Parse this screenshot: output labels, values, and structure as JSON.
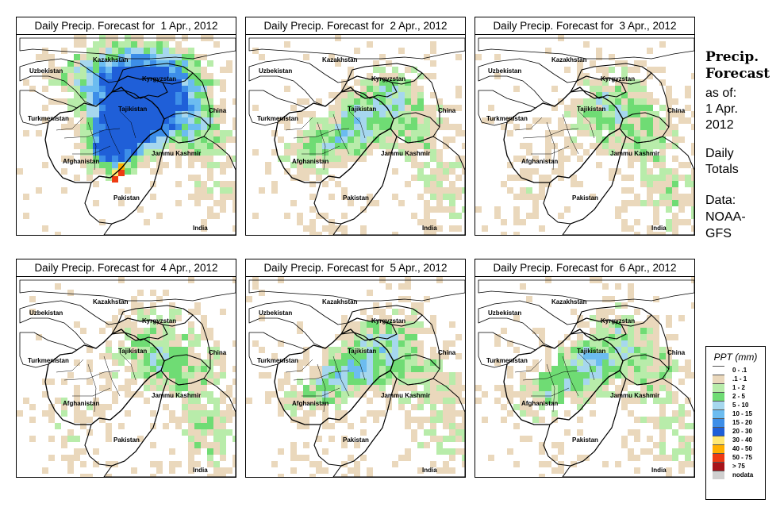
{
  "panels": [
    {
      "title": "Daily Precip. Forecast for  1 Apr., 2012",
      "intensity": "heavy"
    },
    {
      "title": "Daily Precip. Forecast for  2 Apr., 2012",
      "intensity": "moderate"
    },
    {
      "title": "Daily Precip. Forecast for  3 Apr., 2012",
      "intensity": "light"
    },
    {
      "title": "Daily Precip. Forecast for  4 Apr., 2012",
      "intensity": "light"
    },
    {
      "title": "Daily Precip. Forecast for  5 Apr., 2012",
      "intensity": "moderate"
    },
    {
      "title": "Daily Precip. Forecast for  6 Apr., 2012",
      "intensity": "moderate"
    }
  ],
  "map_labels": {
    "kazakhstan": "Kazakhstan",
    "uzbekistan": "Uzbekistan",
    "kyrgyzstan": "Kyrgyzstan",
    "tajikistan": "Tajikistan",
    "china": "China",
    "turkmenistan": "Turkmenistan",
    "afghanistan": "Afghanistan",
    "jammu_kashmir": "Jammu Kashmir",
    "pakistan": "Pakistan",
    "india": "India"
  },
  "side_text": {
    "title_line1": "Precip.",
    "title_line2": "Forecast",
    "asof": "as of:",
    "date_line1": "1 Apr.",
    "date_line2": "2012",
    "daily": "Daily",
    "totals": "Totals",
    "data_label": "Data:",
    "source_line1": "NOAA-",
    "source_line2": "GFS"
  },
  "legend": {
    "title": "PPT (mm)",
    "items": [
      {
        "label": "0 - .1",
        "color": "#ffffff"
      },
      {
        "label": ".1 - 1",
        "color": "#ead8bc"
      },
      {
        "label": "1 - 2",
        "color": "#b8ecaa"
      },
      {
        "label": "2 - 5",
        "color": "#6fdc74"
      },
      {
        "label": "5 - 10",
        "color": "#a6d7ee"
      },
      {
        "label": "10 - 15",
        "color": "#6cbcf0"
      },
      {
        "label": "15 - 20",
        "color": "#3d8ee8"
      },
      {
        "label": "20 - 30",
        "color": "#1f5fd8"
      },
      {
        "label": "30 - 40",
        "color": "#ffe873"
      },
      {
        "label": "40 - 50",
        "color": "#ffb000"
      },
      {
        "label": "50 - 75",
        "color": "#ee3b12"
      },
      {
        "label": "> 75",
        "color": "#a8141a"
      },
      {
        "label": "nodata",
        "color": "#cfcfcf"
      }
    ]
  }
}
